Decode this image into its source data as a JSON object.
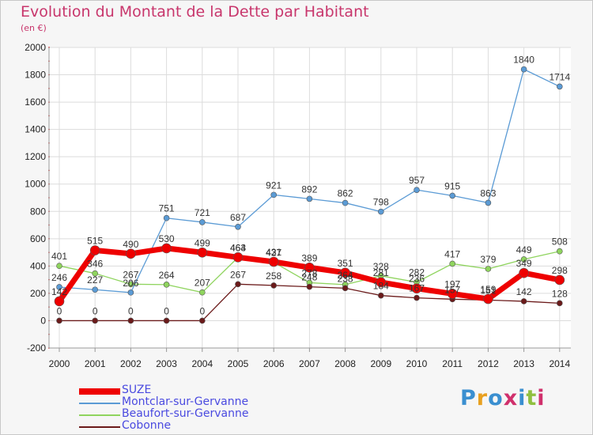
{
  "title": "Evolution du Montant de la Dette par Habitant",
  "subtitle": "(en €)",
  "logo": {
    "text": "Proxiti",
    "colors": [
      "#3a8fd0",
      "#e8a020",
      "#3a8fd0",
      "#d0306c",
      "#3a8fd0",
      "#90c040",
      "#d0306c"
    ]
  },
  "chart_data": {
    "type": "line",
    "x": [
      "2000",
      "2001",
      "2002",
      "2003",
      "2004",
      "2005",
      "2006",
      "2007",
      "2008",
      "2009",
      "2010",
      "2011",
      "2012",
      "2013",
      "2014"
    ],
    "ylim": [
      -200,
      2000
    ],
    "yticks": [
      "-200",
      "0",
      "200",
      "400",
      "600",
      "800",
      "1000",
      "1200",
      "1400",
      "1600",
      "1800",
      "2000"
    ],
    "grid": true,
    "legend_position": "bottom-left",
    "series": [
      {
        "name": "Montclar-sur-Gervanne",
        "color": "#5b9bd5",
        "stroke": 1.3,
        "marker": 3.5,
        "values": [
          246,
          227,
          206,
          751,
          721,
          687,
          921,
          892,
          862,
          798,
          957,
          915,
          863,
          1840,
          1714
        ],
        "labels": [
          "246",
          "227",
          "206",
          "751",
          "721",
          "687",
          "921",
          "892",
          "862",
          "798",
          "957",
          "915",
          "863",
          "1840",
          "1714"
        ]
      },
      {
        "name": "Beaufort-sur-Gervanne",
        "color": "#8fd45e",
        "stroke": 1.3,
        "marker": 3.5,
        "values": [
          401,
          346,
          267,
          264,
          207,
          463,
          427,
          278,
          264,
          328,
          282,
          417,
          379,
          449,
          508
        ],
        "labels": [
          "401",
          "346",
          "267",
          "264",
          "207",
          "463",
          "427",
          "278",
          "264",
          "328",
          "282",
          "417",
          "379",
          "449",
          "508"
        ]
      },
      {
        "name": "Cobonne",
        "color": "#6b1a1a",
        "stroke": 1.3,
        "marker": 3.5,
        "values": [
          0,
          0,
          0,
          0,
          0,
          267,
          258,
          248,
          238,
          184,
          167,
          157,
          151,
          142,
          128
        ],
        "labels": [
          "0",
          "0",
          "0",
          "0",
          "0",
          "267",
          "258",
          "248",
          "238",
          "184",
          "167",
          "157",
          "151",
          "142",
          "128"
        ]
      },
      {
        "name": "SUZE",
        "color": "#ee0000",
        "stroke": 7,
        "marker": 6,
        "values": [
          142,
          515,
          490,
          530,
          499,
          464,
          431,
          389,
          351,
          281,
          236,
          197,
          159,
          349,
          298
        ],
        "labels": [
          "142",
          "515",
          "490",
          "530",
          "499",
          "464",
          "431",
          "389",
          "351",
          "281",
          "236",
          "197",
          "159",
          "349",
          "298"
        ]
      }
    ]
  },
  "legend": [
    {
      "label": "SUZE",
      "color": "#ee0000",
      "thickness": 8
    },
    {
      "label": "Montclar-sur-Gervanne",
      "color": "#5b9bd5",
      "thickness": 2
    },
    {
      "label": "Beaufort-sur-Gervanne",
      "color": "#8fd45e",
      "thickness": 2
    },
    {
      "label": "Cobonne",
      "color": "#6b1a1a",
      "thickness": 2
    }
  ]
}
